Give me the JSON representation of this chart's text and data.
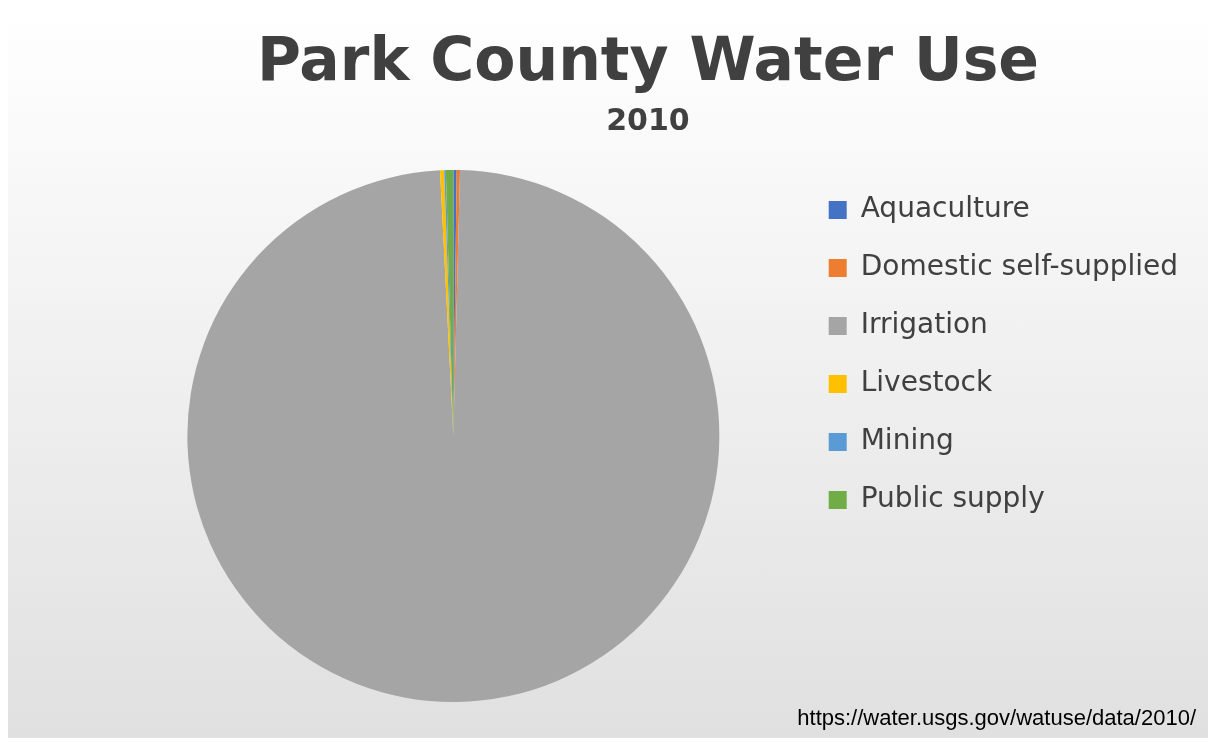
{
  "chart_data": {
    "type": "pie",
    "title": "Park County Water Use",
    "subtitle": "2010",
    "categories": [
      "Aquaculture",
      "Domestic self-supplied",
      "Irrigation",
      "Livestock",
      "Mining",
      "Public supply"
    ],
    "values": [
      0.2,
      0.2,
      98.8,
      0.25,
      0.1,
      0.45
    ],
    "colors": [
      "#4472c4",
      "#ed7d31",
      "#a5a5a5",
      "#ffc000",
      "#5b9bd5",
      "#70ad47"
    ],
    "legend": "right",
    "annotations": [
      "https://water.usgs.gov/watuse/data/2010/"
    ]
  }
}
